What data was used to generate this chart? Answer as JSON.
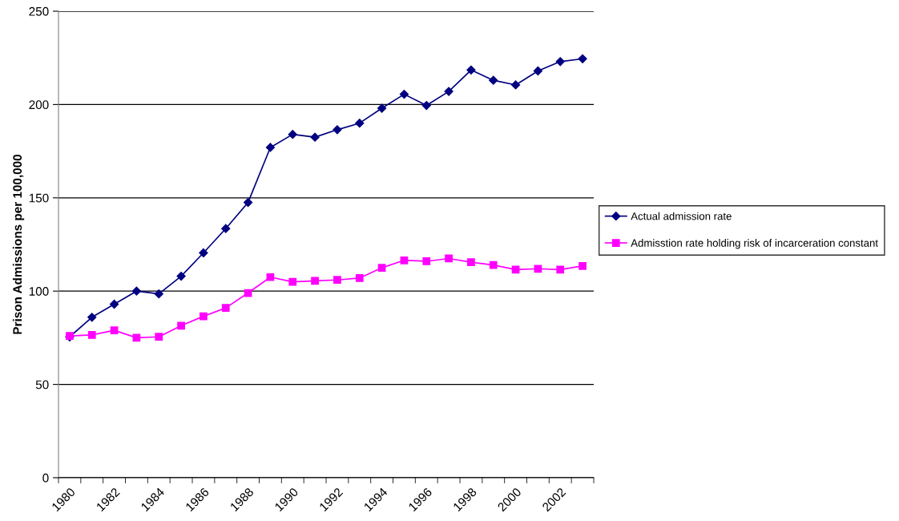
{
  "chart_data": {
    "type": "line",
    "ylabel": "Prison Admissions per 100,000",
    "categories": [
      "1980",
      null,
      "1982",
      null,
      "1984",
      null,
      "1986",
      null,
      "1988",
      null,
      "1990",
      null,
      "1992",
      null,
      "1994",
      null,
      "1996",
      null,
      "1998",
      null,
      "2000",
      null,
      "2002",
      null
    ],
    "series": [
      {
        "name": "Actual admission rate",
        "color": "#000080",
        "marker": "diamond",
        "values": [
          75.5,
          86,
          93,
          100,
          98.5,
          108,
          120.5,
          133.5,
          147.5,
          177,
          184,
          182.5,
          186.5,
          190,
          198,
          205.5,
          199.5,
          207,
          218.5,
          213,
          210.5,
          218,
          223,
          224.5
        ]
      },
      {
        "name": "Admisstion rate holding risk of incarceration constant",
        "color": "#ff00ff",
        "marker": "square",
        "values": [
          76,
          76.5,
          79,
          75,
          75.5,
          81.5,
          86.5,
          91,
          99,
          107.5,
          105,
          105.5,
          106,
          107,
          112.5,
          116.5,
          116,
          117.5,
          115.5,
          114,
          111.5,
          112,
          111.5,
          113.5
        ]
      }
    ],
    "ylim": [
      0,
      250
    ],
    "yticks": [
      0,
      50,
      100,
      150,
      200,
      250
    ],
    "grid": "y",
    "legend": "right",
    "line_style": "solid"
  }
}
